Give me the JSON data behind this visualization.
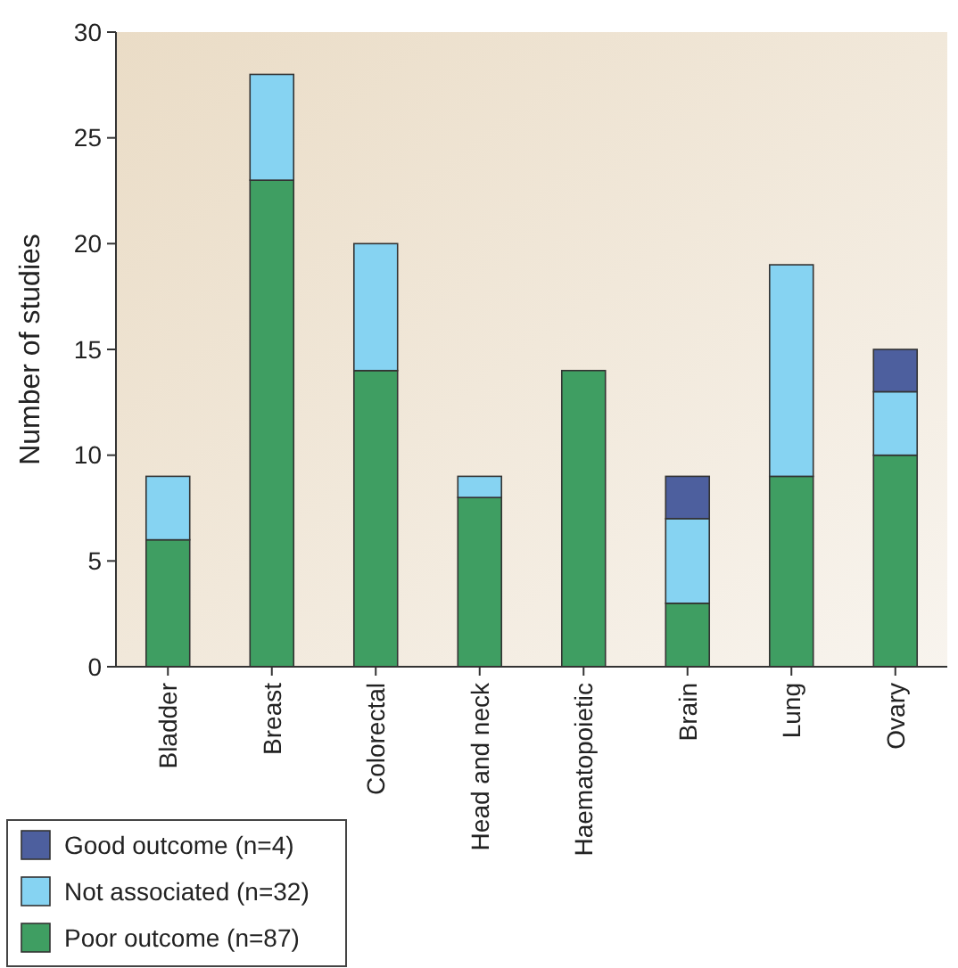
{
  "chart_data": {
    "type": "bar",
    "stacked": true,
    "ylabel": "Number of studies",
    "categories": [
      "Bladder",
      "Breast",
      "Colorectal",
      "Head and neck",
      "Haematopoietic",
      "Brain",
      "Lung",
      "Ovary"
    ],
    "series": [
      {
        "name": "Poor outcome (n=87)",
        "color": "#3f9e62",
        "values": [
          6,
          23,
          14,
          8,
          14,
          3,
          9,
          10
        ]
      },
      {
        "name": "Not associated (n=32)",
        "color": "#86d3f2",
        "values": [
          3,
          5,
          6,
          1,
          0,
          4,
          10,
          3
        ]
      },
      {
        "name": "Good outcome (n=4)",
        "color": "#4d5f9e",
        "values": [
          0,
          0,
          0,
          0,
          0,
          2,
          0,
          2
        ]
      }
    ],
    "ylim": [
      0,
      30
    ],
    "yticks": [
      0,
      5,
      10,
      15,
      20,
      25,
      30
    ],
    "grid": false,
    "legend": "bottom left"
  }
}
